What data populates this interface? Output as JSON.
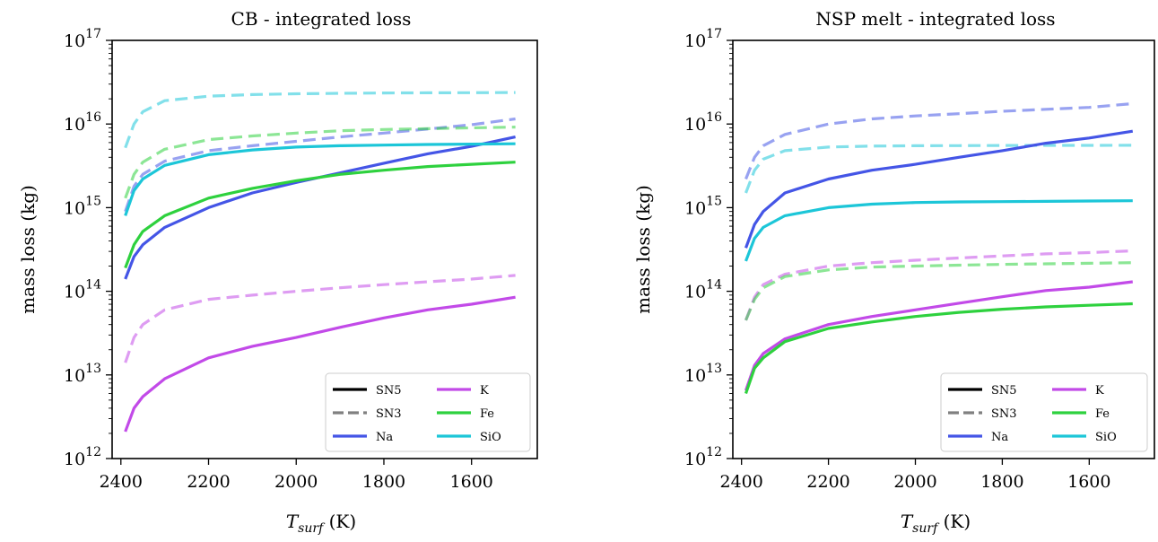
{
  "chart_data": [
    {
      "type": "line",
      "title": "CB - integrated loss",
      "xlabel": "T_surf (K)",
      "ylabel": "mass loss (kg)",
      "xlim": [
        2420,
        1450
      ],
      "ylim": [
        1000000000000.0,
        1e+17
      ],
      "yscale": "log",
      "xticks": [
        "2400",
        "2200",
        "2000",
        "1800",
        "1600"
      ],
      "yticks": [
        "12",
        "13",
        "14",
        "15",
        "16",
        "17"
      ],
      "legend_position": "lower right",
      "legend": [
        {
          "label": "SN5",
          "color": "#000000",
          "dash": false,
          "alpha": 1
        },
        {
          "label": "SN3",
          "color": "#808080",
          "dash": true,
          "alpha": 1
        },
        {
          "label": "Na",
          "color": "#4455e6",
          "dash": false,
          "alpha": 1
        },
        {
          "label": "K",
          "color": "#c24ae8",
          "dash": false,
          "alpha": 1
        },
        {
          "label": "Fe",
          "color": "#2ed13e",
          "dash": false,
          "alpha": 1
        },
        {
          "label": "SiO",
          "color": "#1cc6d8",
          "dash": false,
          "alpha": 1
        }
      ],
      "x": [
        2390,
        2370,
        2350,
        2300,
        2200,
        2100,
        2000,
        1900,
        1800,
        1700,
        1600,
        1500
      ],
      "series": [
        {
          "name": "Na",
          "style": "SN5",
          "color": "#4455e6",
          "values": [
            140000000000000.0,
            260000000000000.0,
            360000000000000.0,
            580000000000000.0,
            1000000000000000.0,
            1500000000000000.0,
            2000000000000000.0,
            2600000000000000.0,
            3400000000000000.0,
            4400000000000000.0,
            5400000000000000.0,
            7000000000000000.0
          ]
        },
        {
          "name": "K",
          "style": "SN5",
          "color": "#c24ae8",
          "values": [
            2100000000000.0,
            4000000000000.0,
            5500000000000.0,
            9000000000000.0,
            16000000000000.0,
            22000000000000.0,
            28000000000000.0,
            37000000000000.0,
            48000000000000.0,
            60000000000000.0,
            70000000000000.0,
            85000000000000.0
          ]
        },
        {
          "name": "Fe",
          "style": "SN5",
          "color": "#2ed13e",
          "values": [
            190000000000000.0,
            360000000000000.0,
            520000000000000.0,
            800000000000000.0,
            1300000000000000.0,
            1700000000000000.0,
            2100000000000000.0,
            2500000000000000.0,
            2800000000000000.0,
            3100000000000000.0,
            3300000000000000.0,
            3500000000000000.0
          ]
        },
        {
          "name": "SiO",
          "style": "SN5",
          "color": "#1cc6d8",
          "values": [
            800000000000000.0,
            1600000000000000.0,
            2200000000000000.0,
            3200000000000000.0,
            4300000000000000.0,
            4900000000000000.0,
            5300000000000000.0,
            5500000000000000.0,
            5600000000000000.0,
            5700000000000000.0,
            5750000000000000.0,
            5800000000000000.0
          ]
        },
        {
          "name": "Na",
          "style": "SN3",
          "color": "#4455e6",
          "values": [
            900000000000000.0,
            1800000000000000.0,
            2500000000000000.0,
            3600000000000000.0,
            4800000000000000.0,
            5500000000000000.0,
            6200000000000000.0,
            7000000000000000.0,
            7800000000000000.0,
            8700000000000000.0,
            9800000000000000.0,
            1.15e+16
          ]
        },
        {
          "name": "K",
          "style": "SN3",
          "color": "#c24ae8",
          "values": [
            14000000000000.0,
            28000000000000.0,
            40000000000000.0,
            60000000000000.0,
            80000000000000.0,
            90000000000000.0,
            100000000000000.0,
            110000000000000.0,
            120000000000000.0,
            130000000000000.0,
            140000000000000.0,
            155000000000000.0
          ]
        },
        {
          "name": "Fe",
          "style": "SN3",
          "color": "#2ed13e",
          "values": [
            1300000000000000.0,
            2500000000000000.0,
            3500000000000000.0,
            5000000000000000.0,
            6500000000000000.0,
            7200000000000000.0,
            7800000000000000.0,
            8300000000000000.0,
            8600000000000000.0,
            8800000000000000.0,
            9000000000000000.0,
            9200000000000000.0
          ]
        },
        {
          "name": "SiO",
          "style": "SN3",
          "color": "#1cc6d8",
          "values": [
            5200000000000000.0,
            1e+16,
            1.4e+16,
            1.9e+16,
            2.15e+16,
            2.25e+16,
            2.3e+16,
            2.33e+16,
            2.35e+16,
            2.36e+16,
            2.37e+16,
            2.38e+16
          ]
        }
      ]
    },
    {
      "type": "line",
      "title": "NSP melt - integrated loss",
      "xlabel": "T_surf (K)",
      "ylabel": "mass loss (kg)",
      "xlim": [
        2420,
        1450
      ],
      "ylim": [
        1000000000000.0,
        1e+17
      ],
      "yscale": "log",
      "xticks": [
        "2400",
        "2200",
        "2000",
        "1800",
        "1600"
      ],
      "yticks": [
        "12",
        "13",
        "14",
        "15",
        "16",
        "17"
      ],
      "legend_position": "lower right",
      "legend": [
        {
          "label": "SN5",
          "color": "#000000",
          "dash": false,
          "alpha": 1
        },
        {
          "label": "SN3",
          "color": "#808080",
          "dash": true,
          "alpha": 1
        },
        {
          "label": "Na",
          "color": "#4455e6",
          "dash": false,
          "alpha": 1
        },
        {
          "label": "K",
          "color": "#c24ae8",
          "dash": false,
          "alpha": 1
        },
        {
          "label": "Fe",
          "color": "#2ed13e",
          "dash": false,
          "alpha": 1
        },
        {
          "label": "SiO",
          "color": "#1cc6d8",
          "dash": false,
          "alpha": 1
        }
      ],
      "x": [
        2390,
        2370,
        2350,
        2300,
        2200,
        2100,
        2000,
        1900,
        1800,
        1700,
        1600,
        1500
      ],
      "series": [
        {
          "name": "Na",
          "style": "SN5",
          "color": "#4455e6",
          "values": [
            330000000000000.0,
            630000000000000.0,
            900000000000000.0,
            1500000000000000.0,
            2200000000000000.0,
            2800000000000000.0,
            3300000000000000.0,
            4000000000000000.0,
            4800000000000000.0,
            5900000000000000.0,
            6800000000000000.0,
            8200000000000000.0
          ]
        },
        {
          "name": "K",
          "style": "SN5",
          "color": "#c24ae8",
          "values": [
            6500000000000.0,
            13000000000000.0,
            18000000000000.0,
            27000000000000.0,
            40000000000000.0,
            50000000000000.0,
            60000000000000.0,
            72000000000000.0,
            86000000000000.0,
            102000000000000.0,
            112000000000000.0,
            130000000000000.0
          ]
        },
        {
          "name": "Fe",
          "style": "SN5",
          "color": "#2ed13e",
          "values": [
            6000000000000.0,
            12000000000000.0,
            16000000000000.0,
            25000000000000.0,
            36000000000000.0,
            43000000000000.0,
            50000000000000.0,
            56000000000000.0,
            61000000000000.0,
            65000000000000.0,
            68000000000000.0,
            71000000000000.0
          ]
        },
        {
          "name": "SiO",
          "style": "SN5",
          "color": "#1cc6d8",
          "values": [
            230000000000000.0,
            430000000000000.0,
            580000000000000.0,
            800000000000000.0,
            1000000000000000.0,
            1100000000000000.0,
            1150000000000000.0,
            1170000000000000.0,
            1180000000000000.0,
            1190000000000000.0,
            1200000000000000.0,
            1210000000000000.0
          ]
        },
        {
          "name": "Na",
          "style": "SN3",
          "color": "#4455e6",
          "values": [
            2200000000000000.0,
            4000000000000000.0,
            5500000000000000.0,
            7500000000000000.0,
            1e+16,
            1.15e+16,
            1.25e+16,
            1.33e+16,
            1.42e+16,
            1.5e+16,
            1.58e+16,
            1.75e+16
          ]
        },
        {
          "name": "K",
          "style": "SN3",
          "color": "#c24ae8",
          "values": [
            45000000000000.0,
            85000000000000.0,
            120000000000000.0,
            160000000000000.0,
            200000000000000.0,
            220000000000000.0,
            235000000000000.0,
            250000000000000.0,
            265000000000000.0,
            280000000000000.0,
            290000000000000.0,
            305000000000000.0
          ]
        },
        {
          "name": "Fe",
          "style": "SN3",
          "color": "#2ed13e",
          "values": [
            45000000000000.0,
            80000000000000.0,
            110000000000000.0,
            150000000000000.0,
            180000000000000.0,
            195000000000000.0,
            200000000000000.0,
            205000000000000.0,
            210000000000000.0,
            213000000000000.0,
            216000000000000.0,
            220000000000000.0
          ]
        },
        {
          "name": "SiO",
          "style": "SN3",
          "color": "#1cc6d8",
          "values": [
            1500000000000000.0,
            2800000000000000.0,
            3800000000000000.0,
            4800000000000000.0,
            5300000000000000.0,
            5450000000000000.0,
            5500000000000000.0,
            5520000000000000.0,
            5540000000000000.0,
            5550000000000000.0,
            5560000000000000.0,
            5570000000000000.0
          ]
        }
      ]
    }
  ]
}
